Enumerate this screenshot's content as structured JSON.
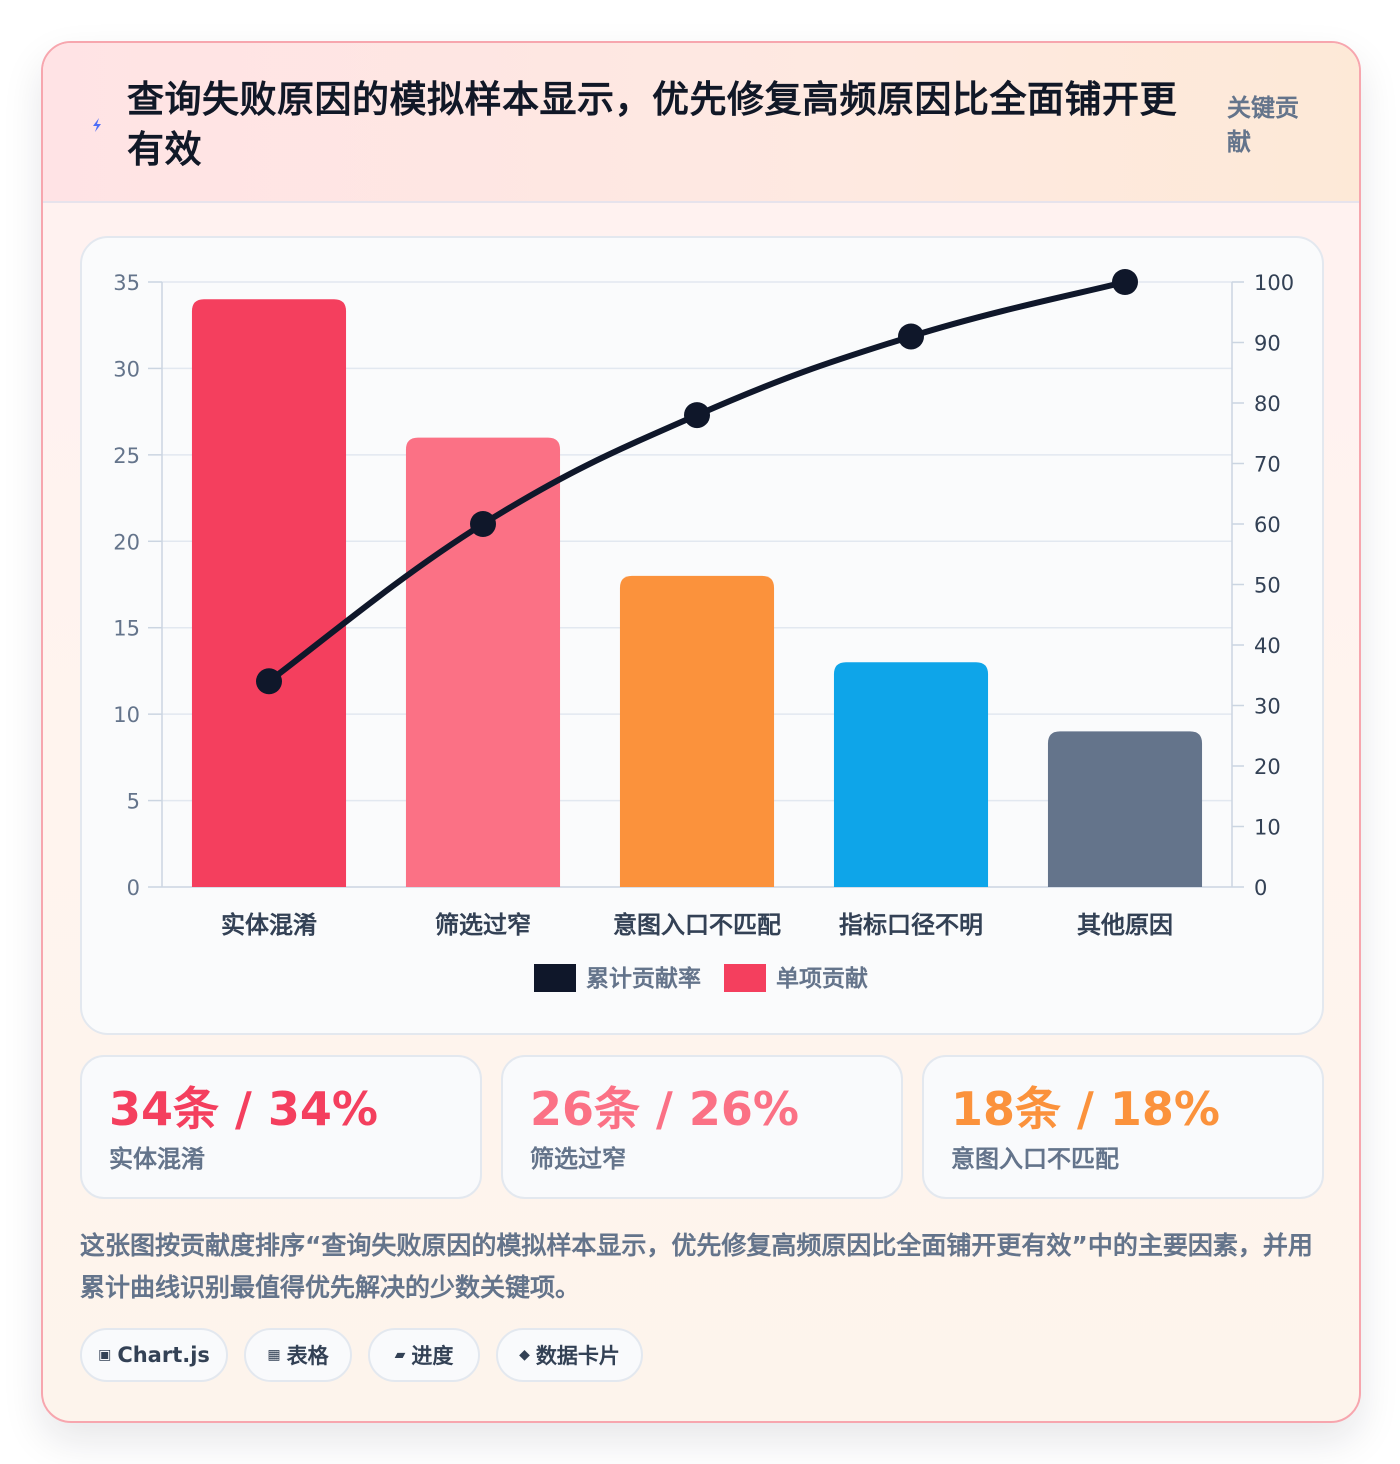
{
  "header": {
    "title": "查询失败原因的模拟样本显示，优先修复高频原因比全面铺开更有效",
    "badge": "关键贡献",
    "icon": "lightning-icon"
  },
  "chart_data": {
    "type": "bar",
    "categories": [
      "实体混淆",
      "筛选过窄",
      "意图入口不匹配",
      "指标口径不明",
      "其他原因"
    ],
    "series": [
      {
        "name": "单项贡献",
        "type": "bar",
        "axis": "left",
        "values": [
          34,
          26,
          18,
          13,
          9
        ],
        "colors": [
          "#f43f5e",
          "#fb7185",
          "#fb923c",
          "#0ea5e9",
          "#64748b"
        ]
      },
      {
        "name": "累计贡献率",
        "type": "line",
        "axis": "right",
        "values": [
          34,
          60,
          78,
          91,
          100
        ],
        "color": "#0f172a"
      }
    ],
    "ylim_left": [
      0,
      35
    ],
    "yticks_left": [
      "0",
      "5",
      "10",
      "15",
      "20",
      "25",
      "30",
      "35"
    ],
    "ylim_right": [
      0,
      100
    ],
    "yticks_right": [
      "0",
      "10",
      "20",
      "30",
      "40",
      "50",
      "60",
      "70",
      "80",
      "90",
      "100"
    ],
    "legend": [
      {
        "name": "累计贡献率",
        "color": "#0f172a"
      },
      {
        "name": "单项贡献",
        "color": "#f43f5e"
      }
    ],
    "legend_position": "bottom",
    "grid": true
  },
  "stats": [
    {
      "value": "34条 / 34%",
      "label": "实体混淆",
      "color": "#f43f5e"
    },
    {
      "value": "26条 / 26%",
      "label": "筛选过窄",
      "color": "#fb7185"
    },
    {
      "value": "18条 / 18%",
      "label": "意图入口不匹配",
      "color": "#fb923c"
    }
  ],
  "description": "这张图按贡献度排序“查询失败原因的模拟样本显示，优先修复高频原因比全面铺开更有效”中的主要因素，并用累计曲线识别最值得优先解决的少数关键项。",
  "tags": [
    {
      "glyph": "▣",
      "label": "Chart.js",
      "icon": "chart-icon"
    },
    {
      "glyph": "▦",
      "label": "表格",
      "icon": "table-icon"
    },
    {
      "glyph": "▰",
      "label": "进度",
      "icon": "progress-icon"
    },
    {
      "glyph": "◆",
      "label": "数据卡片",
      "icon": "card-icon"
    }
  ]
}
